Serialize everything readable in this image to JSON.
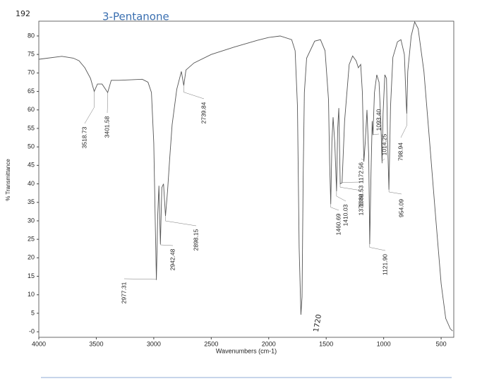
{
  "chart_data": {
    "type": "line",
    "notes": [
      "192",
      "3-Pentanone",
      "1720"
    ],
    "xlabel": "Wavenumbers (cm-1)",
    "ylabel": "% Transmittance",
    "xlim": [
      4000,
      390
    ],
    "ylim": [
      -1.5,
      84
    ],
    "xticks": [
      4000,
      3500,
      3000,
      2500,
      2000,
      1500,
      1000,
      500
    ],
    "yticks": [
      {
        "value": 0,
        "label": "-0"
      },
      5,
      10,
      15,
      20,
      25,
      30,
      35,
      40,
      45,
      50,
      55,
      60,
      65,
      70,
      75,
      80
    ],
    "annotations": [
      "3518.73",
      "3401.58",
      "2739.84",
      "2977.31",
      "2942.48",
      "2898.15",
      "1460.69",
      "1410.03",
      "1378.36",
      "1362.53",
      "1172.56",
      "1093.40",
      "1014.25",
      "954.09",
      "798.94",
      "1121.90"
    ],
    "series": [
      {
        "name": "3-Pentanone",
        "color": "#555555",
        "x": [
          4000,
          3800,
          3700,
          3650,
          3600,
          3550,
          3518,
          3490,
          3450,
          3401,
          3370,
          3300,
          3100,
          3050,
          3020,
          3000,
          2985,
          2977,
          2965,
          2955,
          2942,
          2930,
          2915,
          2898,
          2880,
          2860,
          2840,
          2800,
          2760,
          2739,
          2720,
          2650,
          2500,
          2300,
          2100,
          2000,
          1900,
          1800,
          1770,
          1750,
          1735,
          1720,
          1710,
          1700,
          1690,
          1670,
          1600,
          1550,
          1510,
          1480,
          1470,
          1460,
          1450,
          1440,
          1425,
          1410,
          1400,
          1390,
          1378,
          1362,
          1340,
          1300,
          1270,
          1240,
          1220,
          1200,
          1185,
          1172,
          1160,
          1145,
          1130,
          1121,
          1110,
          1100,
          1093,
          1080,
          1060,
          1040,
          1025,
          1014,
          1005,
          990,
          975,
          965,
          954,
          940,
          920,
          880,
          850,
          820,
          805,
          799,
          790,
          760,
          730,
          700,
          650,
          600,
          550,
          500,
          460,
          420,
          400
        ],
        "values": [
          73.7,
          74.5,
          74,
          73.3,
          71.4,
          68.5,
          65,
          67,
          67,
          64.7,
          68,
          68,
          68.3,
          67.5,
          64.7,
          51,
          26.5,
          14,
          32,
          39.5,
          23.7,
          39,
          40,
          31.3,
          38,
          47.5,
          56,
          65.6,
          70.4,
          66.6,
          70.8,
          72.7,
          75,
          77,
          78.8,
          79.6,
          80,
          79,
          76,
          61,
          22.7,
          4.6,
          9.4,
          41.8,
          64.7,
          74,
          78.6,
          79,
          76,
          62.8,
          45.6,
          34.5,
          51.3,
          58,
          51,
          38,
          55,
          60.5,
          40,
          40.3,
          57,
          72.3,
          74.6,
          73.3,
          71.4,
          72.3,
          64.7,
          46,
          51.3,
          60,
          47.5,
          23.7,
          42.7,
          57,
          53.2,
          64.7,
          69.5,
          67.5,
          57,
          45.6,
          59,
          69.5,
          68.5,
          51.3,
          38.4,
          61,
          74.2,
          78.4,
          79,
          75,
          62.8,
          59,
          70.4,
          80,
          83.8,
          82,
          70.4,
          51.3,
          32,
          13,
          3.6,
          0.8,
          0.2
        ]
      }
    ]
  }
}
